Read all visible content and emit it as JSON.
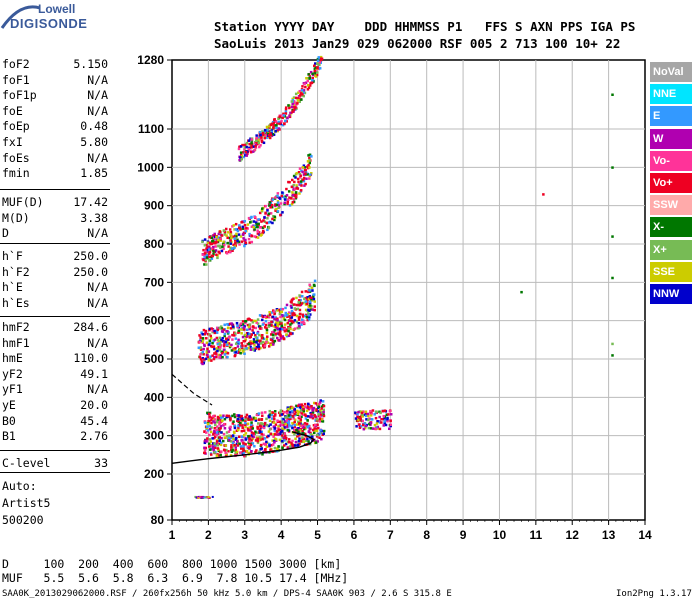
{
  "logo": {
    "line1": "Lowell",
    "line2": "DIGISONDE"
  },
  "header": {
    "row1": "Station YYYY DAY    DDD HHMMSS P1   FFS S AXN PPS IGA PS",
    "row2": "SaoLuis 2013 Jan29 029 062000 RSF 005 2 713 100 10+ 22"
  },
  "params_group1": [
    {
      "name": "foF2",
      "value": "5.150"
    },
    {
      "name": "foF1",
      "value": "N/A"
    },
    {
      "name": "foF1p",
      "value": "N/A"
    },
    {
      "name": "foE",
      "value": "N/A"
    },
    {
      "name": "foEp",
      "value": "0.48"
    },
    {
      "name": "fxI",
      "value": "5.80"
    },
    {
      "name": "foEs",
      "value": "N/A"
    },
    {
      "name": "fmin",
      "value": "1.85"
    }
  ],
  "params_group2": [
    {
      "name": "MUF(D)",
      "value": "17.42"
    },
    {
      "name": "M(D)",
      "value": "3.38"
    },
    {
      "name": "D",
      "value": "N/A"
    }
  ],
  "params_group3": [
    {
      "name": "h`F",
      "value": "250.0"
    },
    {
      "name": "h`F2",
      "value": "250.0"
    },
    {
      "name": "h`E",
      "value": "N/A"
    },
    {
      "name": "h`Es",
      "value": "N/A"
    }
  ],
  "params_group4": [
    {
      "name": "hmF2",
      "value": "284.6"
    },
    {
      "name": "hmF1",
      "value": "N/A"
    },
    {
      "name": "hmE",
      "value": "110.0"
    },
    {
      "name": "yF2",
      "value": "49.1"
    },
    {
      "name": "yF1",
      "value": "N/A"
    },
    {
      "name": "yE",
      "value": "20.0"
    },
    {
      "name": "B0",
      "value": "45.4"
    },
    {
      "name": "B1",
      "value": "2.76"
    }
  ],
  "clevel": {
    "name": "C-level",
    "value": "33"
  },
  "scaling": {
    "line1": "Auto:",
    "line2": "Artist5",
    "line3": "500200"
  },
  "muf_table": {
    "row_d": "D     100  200  400  600  800 1000 1500 3000 [km]",
    "row_muf": "MUF   5.5  5.6  5.8  6.3  6.9  7.8 10.5 17.4 [MHz]"
  },
  "footer": {
    "left": "SAA0K_2013029062000.RSF / 260fx256h 50 kHz 5.0 km / DPS-4 SAA0K 903 / 2.6 S 315.8 E",
    "right": "Ion2Png 1.3.17"
  },
  "legend": [
    {
      "label": "NoVal",
      "color": "#a6a6a6"
    },
    {
      "label": "NNE",
      "color": "#00e5ff"
    },
    {
      "label": "E",
      "color": "#3399ff"
    },
    {
      "label": "W",
      "color": "#b000b0"
    },
    {
      "label": "Vo-",
      "color": "#ff3399"
    },
    {
      "label": "Vo+",
      "color": "#ee0022"
    },
    {
      "label": "SSW",
      "color": "#ffaaaa"
    },
    {
      "label": "X-",
      "color": "#007700"
    },
    {
      "label": "X+",
      "color": "#77bb55"
    },
    {
      "label": "SSE",
      "color": "#cccc00"
    },
    {
      "label": "NNW",
      "color": "#0000cc"
    }
  ],
  "chart_data": {
    "type": "scatter",
    "x_ticks": [
      1,
      2,
      3,
      4,
      5,
      6,
      7,
      8,
      9,
      10,
      11,
      12,
      13,
      14
    ],
    "y_ticks": [
      80,
      200,
      300,
      400,
      500,
      600,
      700,
      800,
      900,
      1000,
      1100,
      1280
    ],
    "xlim": [
      1,
      14
    ],
    "ylim": [
      80,
      1280
    ],
    "grid": true,
    "legend_position": "right",
    "echo_traces": [
      {
        "name": "1-hop F trace",
        "color": "#ee0022",
        "points": [
          [
            1.85,
            290
          ],
          [
            2.3,
            282
          ],
          [
            3.0,
            282
          ],
          [
            3.5,
            288
          ],
          [
            4.0,
            298
          ],
          [
            4.5,
            308
          ],
          [
            5.0,
            318
          ],
          [
            5.15,
            330
          ]
        ]
      },
      {
        "name": "2-hop F trace",
        "color": "#ee0022",
        "points": [
          [
            1.7,
            515
          ],
          [
            2.2,
            525
          ],
          [
            2.8,
            540
          ],
          [
            3.2,
            548
          ],
          [
            3.7,
            565
          ],
          [
            4.2,
            590
          ],
          [
            4.6,
            620
          ],
          [
            4.9,
            650
          ]
        ]
      },
      {
        "name": "3-hop F trace",
        "color": "#ee0022",
        "points": [
          [
            1.8,
            765
          ],
          [
            2.3,
            790
          ],
          [
            2.8,
            810
          ],
          [
            3.3,
            835
          ],
          [
            3.8,
            880
          ],
          [
            4.3,
            930
          ],
          [
            4.8,
            1000
          ]
        ]
      },
      {
        "name": "4-hop F trace",
        "color": "#ee0022",
        "points": [
          [
            2.8,
            1030
          ],
          [
            3.2,
            1055
          ],
          [
            3.6,
            1085
          ],
          [
            4.0,
            1120
          ],
          [
            4.4,
            1170
          ],
          [
            4.8,
            1230
          ],
          [
            5.1,
            1280
          ]
        ]
      }
    ],
    "profile_curve": [
      [
        1.0,
        228
      ],
      [
        1.5,
        234
      ],
      [
        2.0,
        240
      ],
      [
        2.5,
        245
      ],
      [
        3.0,
        250
      ],
      [
        3.5,
        256
      ],
      [
        4.0,
        262
      ],
      [
        4.5,
        270
      ],
      [
        4.8,
        280
      ],
      [
        4.9,
        290
      ],
      [
        4.7,
        300
      ],
      [
        4.3,
        310
      ]
    ],
    "dashed_line": [
      [
        1.0,
        460
      ],
      [
        1.6,
        410
      ],
      [
        2.1,
        380
      ]
    ],
    "es_patch": {
      "x": [
        1.6,
        2.1
      ],
      "y": [
        140,
        143
      ]
    },
    "scattered_points": [
      {
        "x": 13.1,
        "y": 1190,
        "color": "#007700"
      },
      {
        "x": 13.1,
        "y": 1000,
        "color": "#007700"
      },
      {
        "x": 13.1,
        "y": 820,
        "color": "#007700"
      },
      {
        "x": 13.1,
        "y": 712,
        "color": "#007700"
      },
      {
        "x": 13.1,
        "y": 540,
        "color": "#77bb55"
      },
      {
        "x": 13.1,
        "y": 510,
        "color": "#007700"
      },
      {
        "x": 11.2,
        "y": 930,
        "color": "#ee0022"
      },
      {
        "x": 10.6,
        "y": 675,
        "color": "#007700"
      }
    ]
  }
}
